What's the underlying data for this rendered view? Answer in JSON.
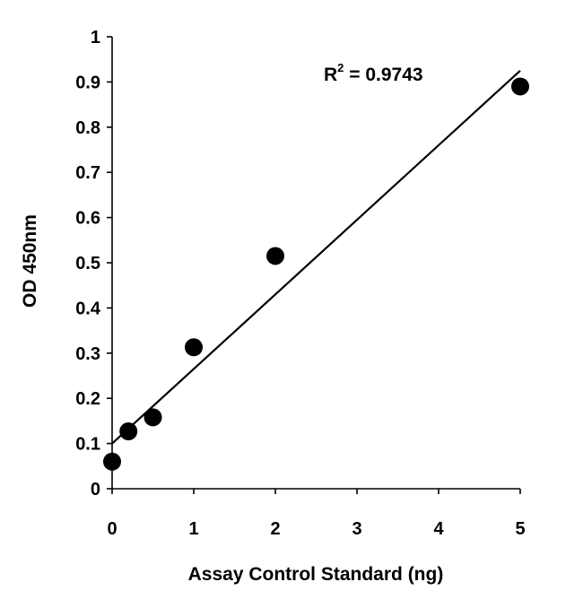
{
  "chart_data": {
    "type": "scatter",
    "title": "",
    "xlabel": "Assay Control Standard (ng)",
    "ylabel": "OD 450nm",
    "xlim": [
      0,
      5
    ],
    "ylim": [
      0,
      1
    ],
    "x_ticks": [
      "0",
      "1",
      "2",
      "3",
      "4",
      "5"
    ],
    "y_ticks": [
      "0",
      "0.1",
      "0.2",
      "0.3",
      "0.4",
      "0.5",
      "0.6",
      "0.7",
      "0.8",
      "0.9",
      "1"
    ],
    "grid": false,
    "legend": "none",
    "points": [
      {
        "x": 0,
        "y": 0.06
      },
      {
        "x": 0.2,
        "y": 0.127
      },
      {
        "x": 0.5,
        "y": 0.158
      },
      {
        "x": 1,
        "y": 0.313
      },
      {
        "x": 2,
        "y": 0.515
      },
      {
        "x": 5,
        "y": 0.89
      }
    ],
    "trendline": {
      "type": "linear",
      "slope": 0.165,
      "intercept": 0.1
    },
    "annotation": {
      "label": "R",
      "superscript": "2",
      "value": " = 0.9743"
    },
    "colors": {
      "marker": "#000000",
      "line": "#000000",
      "axis": "#000000"
    }
  }
}
